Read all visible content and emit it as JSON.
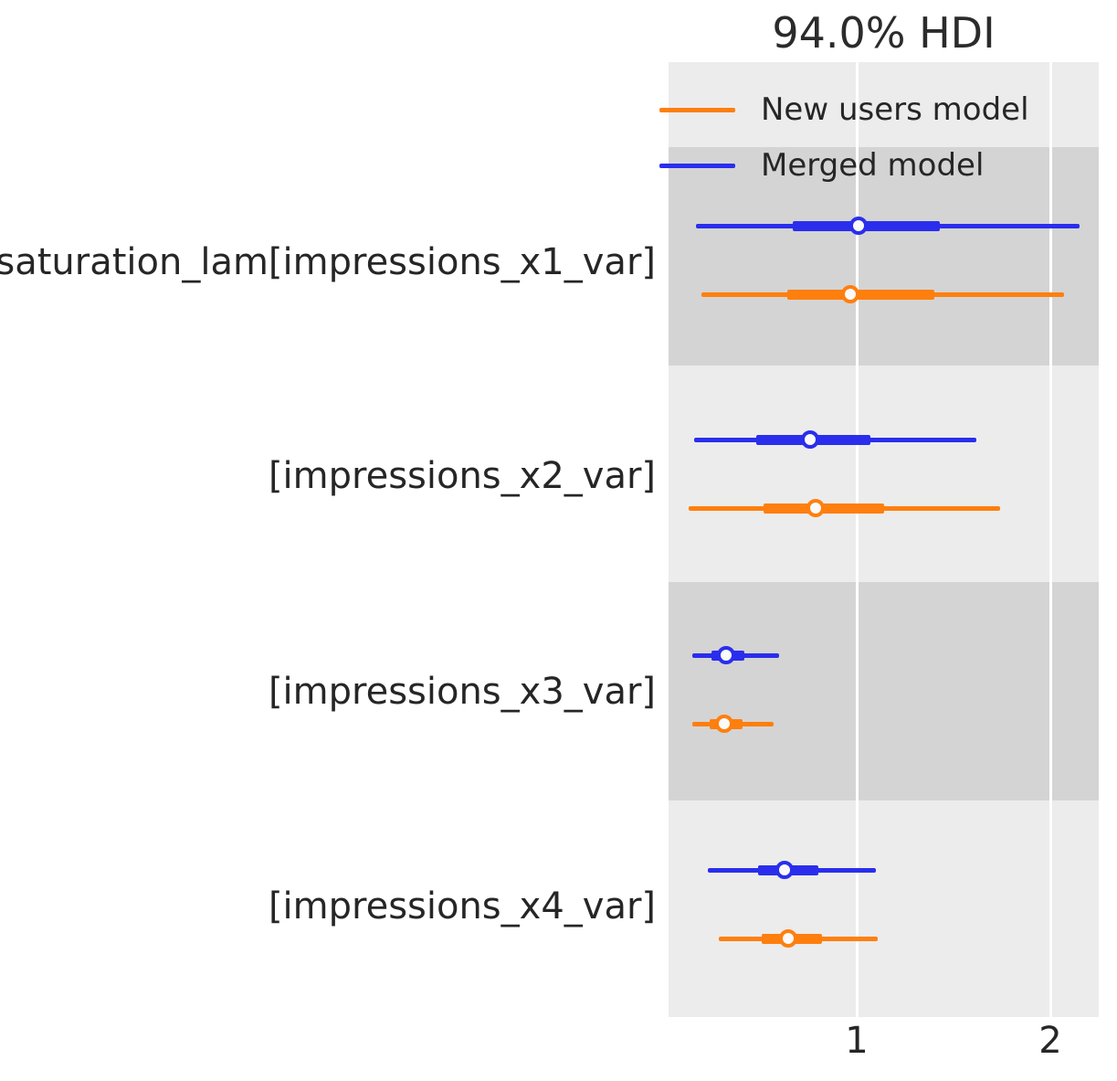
{
  "chart_data": {
    "type": "forest",
    "title": "94.0% HDI",
    "hdi_probability": "94.0%",
    "grid": true,
    "legend_position": "top-right",
    "x_axis": {
      "ticks": [
        "1",
        "2"
      ],
      "tick_values": [
        1,
        2
      ],
      "range": [
        0.03,
        2.25
      ]
    },
    "models": [
      {
        "label": "New users model",
        "color": "#ff7f0e"
      },
      {
        "label": "Merged model",
        "color": "#2a2eec"
      }
    ],
    "rows": [
      {
        "label": "saturation_lam[impressions_x1_var]",
        "estimates": [
          {
            "model": "Merged model",
            "hdi": [
              0.17,
              2.15
            ],
            "interquartile": [
              0.67,
              1.43
            ],
            "median": 1.01
          },
          {
            "model": "New users model",
            "hdi": [
              0.2,
              2.07
            ],
            "interquartile": [
              0.64,
              1.4
            ],
            "median": 0.97
          }
        ]
      },
      {
        "label": "[impressions_x2_var]",
        "estimates": [
          {
            "model": "Merged model",
            "hdi": [
              0.16,
              1.62
            ],
            "interquartile": [
              0.48,
              1.07
            ],
            "median": 0.76
          },
          {
            "model": "New users model",
            "hdi": [
              0.13,
              1.74
            ],
            "interquartile": [
              0.52,
              1.14
            ],
            "median": 0.79
          }
        ]
      },
      {
        "label": "[impressions_x3_var]",
        "estimates": [
          {
            "model": "Merged model",
            "hdi": [
              0.15,
              0.6
            ],
            "interquartile": [
              0.25,
              0.42
            ],
            "median": 0.33
          },
          {
            "model": "New users model",
            "hdi": [
              0.15,
              0.57
            ],
            "interquartile": [
              0.24,
              0.41
            ],
            "median": 0.32
          }
        ]
      },
      {
        "label": "[impressions_x4_var]",
        "estimates": [
          {
            "model": "Merged model",
            "hdi": [
              0.23,
              1.1
            ],
            "interquartile": [
              0.49,
              0.8
            ],
            "median": 0.63
          },
          {
            "model": "New users model",
            "hdi": [
              0.29,
              1.11
            ],
            "interquartile": [
              0.51,
              0.82
            ],
            "median": 0.65
          }
        ]
      }
    ],
    "colors": {
      "new_users_model": "#ff7f0e",
      "merged_model": "#2a2eec",
      "band_light": "#ececec",
      "band_dark": "#d4d4d4",
      "gridline": "#ffffff",
      "text": "#262626",
      "marker_face": "#fafafa"
    }
  }
}
